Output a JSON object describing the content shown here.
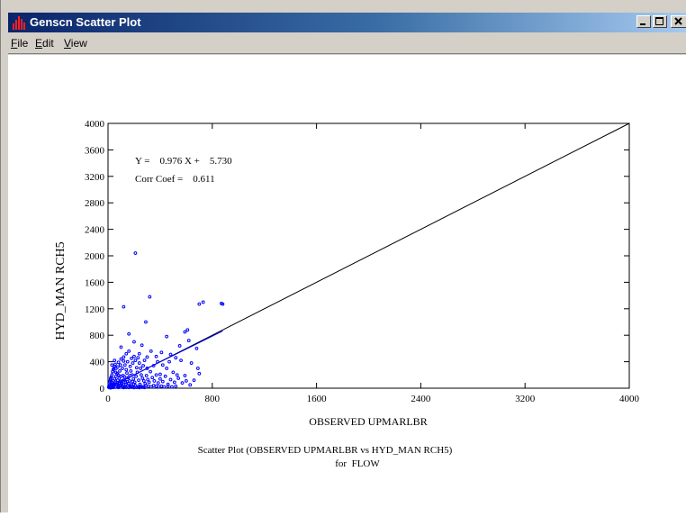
{
  "window": {
    "title": "Genscn Scatter Plot"
  },
  "menu": [
    {
      "first": "F",
      "rest": "ile"
    },
    {
      "first": "E",
      "rest": "dit"
    },
    {
      "first": "V",
      "rest": "iew"
    }
  ],
  "chart_data": {
    "type": "scatter",
    "xlabel": "OBSERVED UPMARLBR",
    "ylabel": "HYD_MAN RCH5",
    "xlim": [
      0,
      4000
    ],
    "ylim": [
      0,
      4000
    ],
    "x_ticks": [
      "0",
      "800",
      "1600",
      "2400",
      "3200",
      "4000"
    ],
    "y_ticks": [
      "0",
      "400",
      "800",
      "1200",
      "1600",
      "2000",
      "2400",
      "2800",
      "3200",
      "3600",
      "4000"
    ],
    "equation": "Y =    0.976 X +    5.730",
    "corr": "Corr Coef =    0.611",
    "caption1": "Scatter Plot (OBSERVED UPMARLBR vs HYD_MAN RCH5)",
    "caption2": "for  FLOW",
    "reference_line": {
      "from": [
        0,
        0
      ],
      "to": [
        4000,
        4000
      ]
    },
    "regression": {
      "slope": 0.976,
      "intercept": 5.73,
      "x_range": [
        0,
        880
      ]
    },
    "point_color": "#0000ff",
    "series": [
      {
        "points": [
          [
            210,
            2040
          ],
          [
            320,
            1380
          ],
          [
            120,
            1230
          ],
          [
            730,
            1300
          ],
          [
            700,
            1270
          ],
          [
            870,
            1280
          ],
          [
            880,
            1270
          ],
          [
            290,
            1000
          ],
          [
            610,
            880
          ],
          [
            590,
            850
          ],
          [
            450,
            780
          ],
          [
            620,
            720
          ],
          [
            550,
            640
          ],
          [
            680,
            600
          ],
          [
            160,
            820
          ],
          [
            100,
            620
          ],
          [
            200,
            700
          ],
          [
            260,
            650
          ],
          [
            330,
            560
          ],
          [
            410,
            540
          ],
          [
            370,
            480
          ],
          [
            480,
            510
          ],
          [
            520,
            460
          ],
          [
            560,
            420
          ],
          [
            640,
            380
          ],
          [
            690,
            300
          ],
          [
            700,
            220
          ],
          [
            660,
            120
          ],
          [
            590,
            190
          ],
          [
            540,
            150
          ],
          [
            500,
            240
          ],
          [
            450,
            300
          ],
          [
            400,
            210
          ],
          [
            350,
            340
          ],
          [
            300,
            300
          ],
          [
            280,
            420
          ],
          [
            240,
            380
          ],
          [
            220,
            310
          ],
          [
            180,
            450
          ],
          [
            150,
            400
          ],
          [
            130,
            350
          ],
          [
            110,
            300
          ],
          [
            90,
            260
          ],
          [
            70,
            220
          ],
          [
            60,
            180
          ],
          [
            50,
            140
          ],
          [
            40,
            110
          ],
          [
            30,
            80
          ],
          [
            25,
            60
          ],
          [
            20,
            40
          ],
          [
            15,
            20
          ],
          [
            10,
            10
          ],
          [
            35,
            30
          ],
          [
            45,
            70
          ],
          [
            55,
            90
          ],
          [
            65,
            50
          ],
          [
            75,
            120
          ],
          [
            85,
            150
          ],
          [
            95,
            100
          ],
          [
            105,
            70
          ],
          [
            115,
            190
          ],
          [
            125,
            130
          ],
          [
            135,
            90
          ],
          [
            145,
            230
          ],
          [
            155,
            160
          ],
          [
            165,
            110
          ],
          [
            175,
            260
          ],
          [
            185,
            200
          ],
          [
            195,
            140
          ],
          [
            205,
            90
          ],
          [
            215,
            180
          ],
          [
            225,
            240
          ],
          [
            235,
            120
          ],
          [
            245,
            60
          ],
          [
            255,
            200
          ],
          [
            265,
            150
          ],
          [
            275,
            110
          ],
          [
            285,
            70
          ],
          [
            295,
            190
          ],
          [
            305,
            130
          ],
          [
            315,
            90
          ],
          [
            325,
            250
          ],
          [
            340,
            160
          ],
          [
            355,
            110
          ],
          [
            370,
            200
          ],
          [
            385,
            80
          ],
          [
            400,
            140
          ],
          [
            420,
            100
          ],
          [
            440,
            180
          ],
          [
            460,
            60
          ],
          [
            480,
            130
          ],
          [
            510,
            90
          ],
          [
            530,
            200
          ],
          [
            570,
            80
          ],
          [
            600,
            110
          ],
          [
            630,
            50
          ],
          [
            20,
            150
          ],
          [
            30,
            200
          ],
          [
            40,
            280
          ],
          [
            50,
            330
          ],
          [
            60,
            240
          ],
          [
            80,
            390
          ],
          [
            100,
            440
          ],
          [
            120,
            470
          ],
          [
            140,
            280
          ],
          [
            170,
            330
          ],
          [
            190,
            380
          ],
          [
            210,
            420
          ],
          [
            230,
            460
          ],
          [
            250,
            300
          ],
          [
            270,
            340
          ],
          [
            15,
            100
          ],
          [
            25,
            170
          ],
          [
            35,
            250
          ],
          [
            45,
            300
          ],
          [
            55,
            360
          ],
          [
            70,
            80
          ],
          [
            90,
            40
          ],
          [
            110,
            30
          ],
          [
            130,
            20
          ],
          [
            150,
            40
          ],
          [
            170,
            30
          ],
          [
            190,
            20
          ],
          [
            210,
            40
          ],
          [
            230,
            20
          ],
          [
            250,
            30
          ],
          [
            270,
            20
          ],
          [
            290,
            40
          ],
          [
            310,
            30
          ],
          [
            330,
            20
          ],
          [
            350,
            40
          ],
          [
            370,
            30
          ],
          [
            390,
            20
          ],
          [
            410,
            30
          ],
          [
            430,
            20
          ],
          [
            460,
            30
          ],
          [
            490,
            20
          ],
          [
            520,
            30
          ],
          [
            80,
            10
          ],
          [
            100,
            15
          ],
          [
            120,
            8
          ],
          [
            140,
            12
          ],
          [
            160,
            10
          ],
          [
            180,
            14
          ],
          [
            200,
            9
          ],
          [
            220,
            12
          ],
          [
            240,
            8
          ],
          [
            260,
            14
          ],
          [
            280,
            10
          ],
          [
            60,
            15
          ],
          [
            40,
            10
          ],
          [
            20,
            5
          ],
          [
            12,
            50
          ],
          [
            8,
            30
          ],
          [
            5,
            15
          ],
          [
            18,
            120
          ],
          [
            28,
            90
          ],
          [
            38,
            60
          ],
          [
            48,
            40
          ],
          [
            58,
            20
          ],
          [
            68,
            60
          ],
          [
            78,
            30
          ],
          [
            88,
            80
          ],
          [
            98,
            50
          ],
          [
            108,
            110
          ],
          [
            118,
            60
          ],
          [
            128,
            170
          ],
          [
            138,
            60
          ],
          [
            148,
            100
          ],
          [
            158,
            70
          ],
          [
            168,
            190
          ],
          [
            178,
            50
          ],
          [
            188,
            100
          ],
          [
            198,
            60
          ],
          [
            100,
            180
          ],
          [
            80,
            200
          ],
          [
            60,
            300
          ],
          [
            140,
            520
          ],
          [
            160,
            560
          ],
          [
            200,
            480
          ],
          [
            240,
            520
          ],
          [
            300,
            470
          ],
          [
            380,
            400
          ],
          [
            420,
            350
          ],
          [
            470,
            400
          ],
          [
            120,
            410
          ],
          [
            95,
            350
          ],
          [
            75,
            320
          ],
          [
            50,
            420
          ],
          [
            30,
            350
          ]
        ]
      }
    ]
  }
}
